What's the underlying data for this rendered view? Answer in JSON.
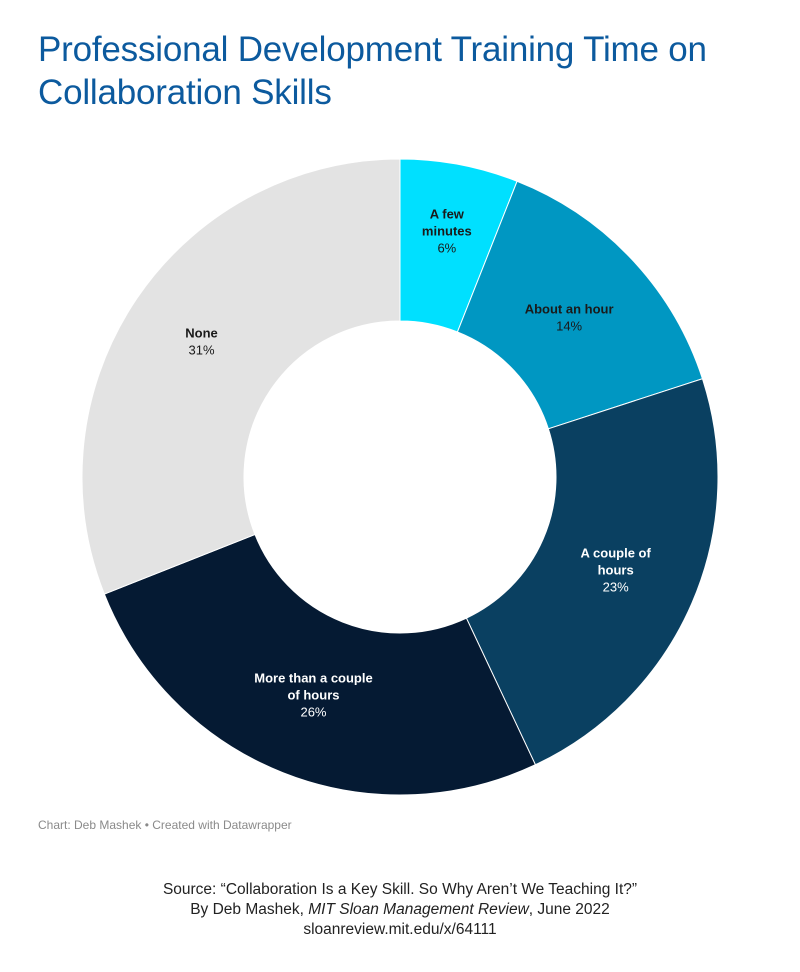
{
  "chart_data": {
    "type": "pie",
    "title": "Professional Development Training Time on Collaboration Skills",
    "donut": true,
    "slices": [
      {
        "label": "A few minutes",
        "label_lines": [
          "A few",
          "minutes"
        ],
        "value": 6,
        "value_label": "6%",
        "color": "#00e0ff",
        "text_color": "#1a1a1a"
      },
      {
        "label": "About an hour",
        "label_lines": [
          "About an hour"
        ],
        "value": 14,
        "value_label": "14%",
        "color": "#0097c2",
        "text_color": "#1a1a1a"
      },
      {
        "label": "A couple of hours",
        "label_lines": [
          "A couple of",
          "hours"
        ],
        "value": 23,
        "value_label": "23%",
        "color": "#0a4061",
        "text_color": "#ffffff"
      },
      {
        "label": "More than a couple of hours",
        "label_lines": [
          "More than a couple",
          "of hours"
        ],
        "value": 26,
        "value_label": "26%",
        "color": "#051a33",
        "text_color": "#ffffff"
      },
      {
        "label": "None",
        "label_lines": [
          "None"
        ],
        "value": 31,
        "value_label": "31%",
        "color": "#e3e3e3",
        "text_color": "#1a1a1a"
      }
    ],
    "credit": "Chart: Deb Mashek • Created with Datawrapper"
  },
  "source": {
    "line1": "Source: “Collaboration Is a Key Skill. So Why Aren’t We Teaching It?”",
    "line2_prefix": "By Deb Mashek, ",
    "line2_italic": "MIT Sloan Management Review",
    "line2_suffix": ", June 2022",
    "line3": "sloanreview.mit.edu/x/64111"
  }
}
